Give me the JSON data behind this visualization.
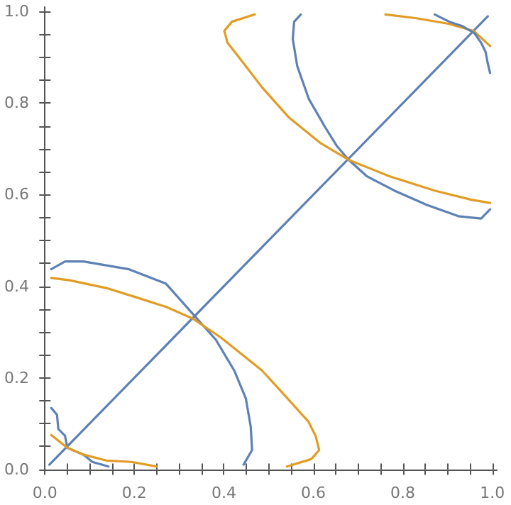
{
  "chart_data": {
    "type": "line",
    "xlim": [
      -0.01,
      1.01
    ],
    "ylim": [
      -0.01,
      1.01
    ],
    "xticks": [
      {
        "value": 0.05,
        "label": null
      },
      {
        "value": 0.1,
        "label": null
      },
      {
        "value": 0.15,
        "label": null
      },
      {
        "value": 0,
        "label": "0.0"
      },
      {
        "value": 0.25,
        "label": null
      },
      {
        "value": 0.3,
        "label": null
      },
      {
        "value": 0.35,
        "label": null
      },
      0.2,
      {
        "value": 0.45,
        "label": null
      },
      {
        "value": 0.5,
        "label": null
      },
      {
        "value": 0.55,
        "label": null
      },
      0.4,
      {
        "value": 0.65,
        "label": null
      },
      {
        "value": 0.7,
        "label": null
      },
      {
        "value": 0.75,
        "label": null
      },
      0.6,
      {
        "value": 0.85,
        "label": null
      },
      {
        "value": 0.9,
        "label": null
      },
      {
        "value": 0.95,
        "label": null
      },
      0.8,
      {
        "value": 1,
        "label": "1.0"
      }
    ],
    "yticks": [
      {
        "value": 0,
        "label": "0.0"
      },
      {
        "value": 0.05,
        "label": null
      },
      {
        "value": 0.1,
        "label": null
      },
      {
        "value": 0.15,
        "label": null
      },
      0.2,
      {
        "value": 0.25,
        "label": null
      },
      {
        "value": 0.3,
        "label": null
      },
      {
        "value": 0.35,
        "label": null
      },
      0.4,
      {
        "value": 0.45,
        "label": null
      },
      {
        "value": 0.5,
        "label": null
      },
      {
        "value": 0.55,
        "label": null
      },
      0.6,
      {
        "value": 0.65,
        "label": null
      },
      {
        "value": 0.7,
        "label": null
      },
      {
        "value": 0.75,
        "label": null
      },
      0.8,
      {
        "value": 0.85,
        "label": null
      },
      {
        "value": 0.9,
        "label": null
      },
      {
        "value": 0.95,
        "label": null
      },
      {
        "value": 1,
        "label": "1.0"
      }
    ],
    "grid": false,
    "marker": "none",
    "line_style": "solid",
    "series": [
      {
        "color": "#5e81b5",
        "x": [
          0.01,
          0.99
        ],
        "values": [
          0.01,
          0.99
        ]
      },
      {
        "color": "#5e81b5",
        "x": [
          0.014,
          0.045,
          0.086,
          0.188,
          0.27,
          0.331,
          0.382,
          0.423,
          0.449,
          0.46,
          0.463,
          0.444
        ],
        "values": [
          0.437,
          0.454,
          0.454,
          0.437,
          0.406,
          0.339,
          0.283,
          0.216,
          0.155,
          0.093,
          0.042,
          0.01
        ]
      },
      {
        "color": "#e19c24",
        "x": [
          0.014,
          0.055,
          0.137,
          0.2,
          0.27,
          0.331,
          0.393,
          0.485,
          0.528,
          0.589,
          0.605,
          0.613,
          0.595,
          0.541
        ],
        "values": [
          0.418,
          0.413,
          0.396,
          0.377,
          0.355,
          0.329,
          0.288,
          0.216,
          0.17,
          0.104,
          0.073,
          0.042,
          0.022,
          0.006
        ]
      },
      {
        "color": "#5e81b5",
        "x": [
          0.014,
          0.027,
          0.03,
          0.045,
          0.05,
          0.086,
          0.106,
          0.142
        ],
        "values": [
          0.134,
          0.119,
          0.088,
          0.073,
          0.047,
          0.032,
          0.016,
          0.006
        ]
      },
      {
        "color": "#e19c24",
        "x": [
          0.014,
          0.05,
          0.086,
          0.137,
          0.193,
          0.249
        ],
        "values": [
          0.075,
          0.047,
          0.032,
          0.019,
          0.016,
          0.006
        ]
      },
      {
        "color": "#5e81b5",
        "x": [
          0.572,
          0.557,
          0.554,
          0.564,
          0.59,
          0.626,
          0.652,
          0.679,
          0.72,
          0.781,
          0.853,
          0.924,
          0.975,
          0.995
        ],
        "values": [
          0.994,
          0.978,
          0.94,
          0.881,
          0.809,
          0.748,
          0.707,
          0.676,
          0.64,
          0.609,
          0.578,
          0.553,
          0.548,
          0.568
        ]
      },
      {
        "color": "#e19c24",
        "x": [
          0.469,
          0.418,
          0.401,
          0.408,
          0.434,
          0.485,
          0.546,
          0.617,
          0.679,
          0.771,
          0.871,
          0.953,
          0.995
        ],
        "values": [
          0.994,
          0.978,
          0.958,
          0.932,
          0.9,
          0.835,
          0.768,
          0.712,
          0.676,
          0.64,
          0.609,
          0.589,
          0.582
        ]
      },
      {
        "color": "#e19c24",
        "x": [
          0.761,
          0.828,
          0.9,
          0.958,
          0.995
        ],
        "values": [
          0.994,
          0.986,
          0.974,
          0.958,
          0.925
        ]
      },
      {
        "color": "#5e81b5",
        "x": [
          0.871,
          0.904,
          0.934,
          0.96,
          0.975,
          0.985,
          0.99,
          0.995
        ],
        "values": [
          0.994,
          0.978,
          0.968,
          0.953,
          0.932,
          0.912,
          0.886,
          0.866
        ]
      }
    ]
  }
}
